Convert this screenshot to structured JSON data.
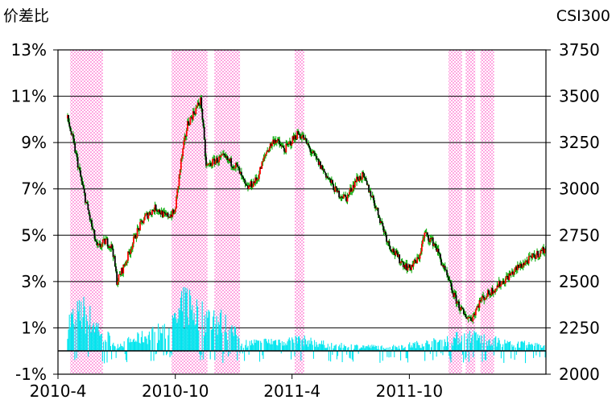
{
  "chart_data": {
    "type": "candlestick+bar",
    "title": "",
    "left_axis": {
      "label": "价差比",
      "ticks": [
        "13%",
        "11%",
        "9%",
        "7%",
        "5%",
        "3%",
        "1%",
        "-1%"
      ],
      "range": [
        -1,
        13
      ]
    },
    "right_axis": {
      "label": "CSI300",
      "ticks": [
        "3750",
        "3500",
        "3250",
        "3000",
        "2750",
        "2500",
        "2250",
        "2000"
      ],
      "range": [
        2000,
        3750
      ]
    },
    "x_axis": {
      "ticks": [
        "2010-4",
        "2010-10",
        "2011-4",
        "2011-10"
      ],
      "range": [
        "2010-04",
        "2012-05"
      ]
    },
    "grid": "horizontal",
    "shaded_periods": [
      [
        "2010-04-20",
        "2010-06-10"
      ],
      [
        "2010-09-25",
        "2010-11-20"
      ],
      [
        "2010-12-01",
        "2011-01-10"
      ],
      [
        "2011-04-05",
        "2011-04-20"
      ],
      [
        "2011-12-01",
        "2011-12-22"
      ],
      [
        "2011-12-28",
        "2012-01-12"
      ],
      [
        "2012-01-20",
        "2012-02-10"
      ]
    ],
    "series": [
      {
        "type": "candlestick",
        "axis": "right",
        "keypoints": [
          [
            "2010-04-16",
            3380
          ],
          [
            "2010-04-25",
            3250
          ],
          [
            "2010-05-10",
            3000
          ],
          [
            "2010-05-20",
            2850
          ],
          [
            "2010-06-01",
            2680
          ],
          [
            "2010-06-15",
            2720
          ],
          [
            "2010-06-25",
            2680
          ],
          [
            "2010-07-02",
            2500
          ],
          [
            "2010-07-15",
            2600
          ],
          [
            "2010-08-01",
            2760
          ],
          [
            "2010-08-15",
            2850
          ],
          [
            "2010-09-01",
            2900
          ],
          [
            "2010-09-15",
            2850
          ],
          [
            "2010-09-30",
            2870
          ],
          [
            "2010-10-10",
            3150
          ],
          [
            "2010-10-20",
            3350
          ],
          [
            "2010-11-05",
            3450
          ],
          [
            "2010-11-10",
            3480
          ],
          [
            "2010-11-18",
            3120
          ],
          [
            "2010-12-01",
            3150
          ],
          [
            "2010-12-15",
            3170
          ],
          [
            "2011-01-05",
            3120
          ],
          [
            "2011-01-20",
            3000
          ],
          [
            "2011-02-05",
            3050
          ],
          [
            "2011-02-20",
            3200
          ],
          [
            "2011-03-05",
            3270
          ],
          [
            "2011-03-20",
            3210
          ],
          [
            "2011-04-10",
            3300
          ],
          [
            "2011-04-18",
            3280
          ],
          [
            "2011-05-01",
            3200
          ],
          [
            "2011-05-20",
            3100
          ],
          [
            "2011-06-10",
            2980
          ],
          [
            "2011-06-25",
            2950
          ],
          [
            "2011-07-10",
            3050
          ],
          [
            "2011-07-20",
            3070
          ],
          [
            "2011-08-05",
            2950
          ],
          [
            "2011-08-15",
            2850
          ],
          [
            "2011-08-30",
            2700
          ],
          [
            "2011-09-15",
            2620
          ],
          [
            "2011-09-30",
            2570
          ],
          [
            "2011-10-15",
            2620
          ],
          [
            "2011-10-25",
            2760
          ],
          [
            "2011-11-10",
            2700
          ],
          [
            "2011-11-25",
            2560
          ],
          [
            "2011-12-10",
            2420
          ],
          [
            "2011-12-25",
            2320
          ],
          [
            "2012-01-06",
            2300
          ],
          [
            "2012-01-20",
            2400
          ],
          [
            "2012-02-10",
            2460
          ],
          [
            "2012-03-01",
            2520
          ],
          [
            "2012-03-20",
            2580
          ],
          [
            "2012-04-10",
            2630
          ],
          [
            "2012-05-01",
            2680
          ]
        ]
      },
      {
        "type": "bar",
        "axis": "left",
        "color": "#00e5ee",
        "keypoints": [
          [
            "2010-04-16",
            1.5
          ],
          [
            "2010-05-10",
            2.0
          ],
          [
            "2010-06-10",
            1.0
          ],
          [
            "2010-07-01",
            0.3
          ],
          [
            "2010-09-25",
            1.2
          ],
          [
            "2010-10-20",
            2.6
          ],
          [
            "2010-11-10",
            1.8
          ],
          [
            "2010-12-15",
            1.5
          ],
          [
            "2011-01-15",
            0.4
          ],
          [
            "2011-04-10",
            0.6
          ],
          [
            "2011-06-01",
            0.3
          ],
          [
            "2011-09-01",
            0.2
          ],
          [
            "2011-11-20",
            0.5
          ],
          [
            "2012-01-01",
            0.8
          ],
          [
            "2012-03-01",
            0.4
          ],
          [
            "2012-05-01",
            0.3
          ]
        ]
      }
    ],
    "colors": {
      "up_body": "#ff0000",
      "down_body": "#000000",
      "wick": "#00aa00",
      "shade": "#ff99dd",
      "spread_bar": "#00e5ee",
      "grid": "#000000"
    }
  }
}
